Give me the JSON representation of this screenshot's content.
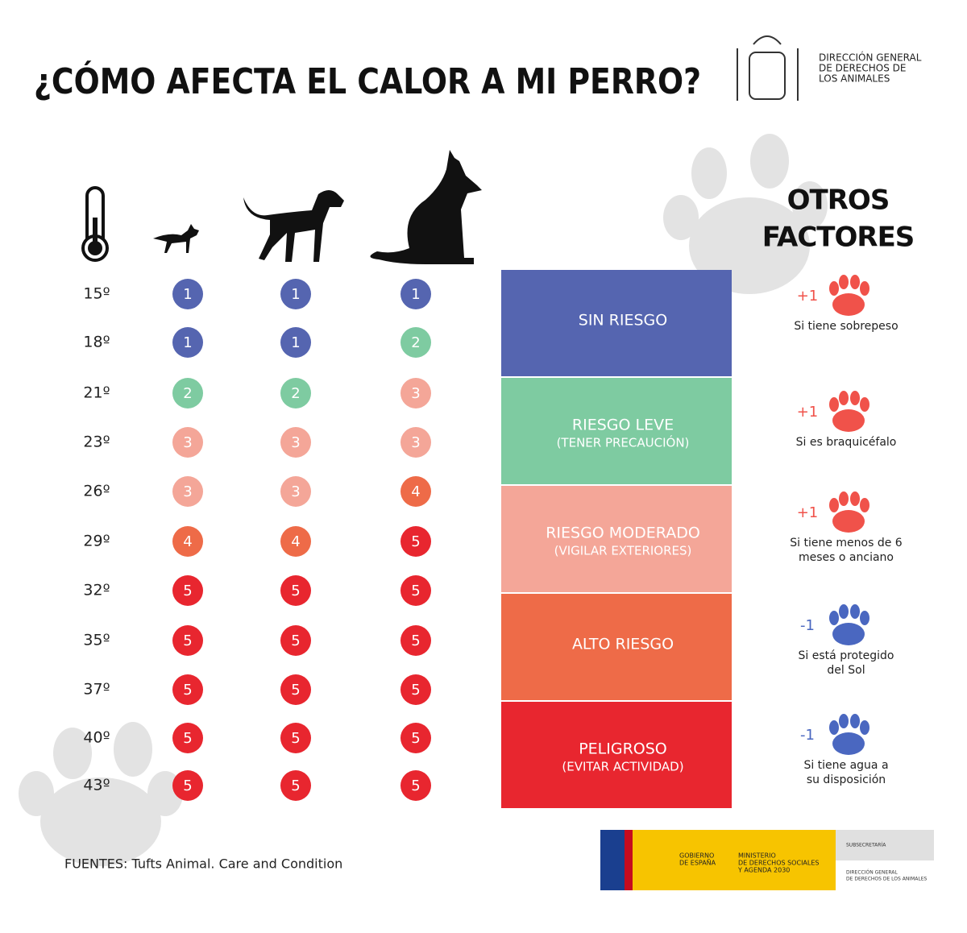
{
  "header": {
    "title": "¿CÓMO AFECTA EL CALOR A MI PERRO?",
    "org_lines": [
      "DIRECCIÓN GENERAL",
      "DE DERECHOS DE",
      "LOS ANIMALES"
    ]
  },
  "table": {
    "rows": [
      {
        "temp": "15º",
        "levels": [
          1,
          1,
          1
        ]
      },
      {
        "temp": "18º",
        "levels": [
          1,
          1,
          2
        ]
      },
      {
        "temp": "21º",
        "levels": [
          2,
          2,
          3
        ]
      },
      {
        "temp": "23º",
        "levels": [
          3,
          3,
          3
        ]
      },
      {
        "temp": "26º",
        "levels": [
          3,
          3,
          4
        ]
      },
      {
        "temp": "29º",
        "levels": [
          4,
          4,
          5
        ]
      },
      {
        "temp": "32º",
        "levels": [
          5,
          5,
          5
        ]
      },
      {
        "temp": "35º",
        "levels": [
          5,
          5,
          5
        ]
      },
      {
        "temp": "37º",
        "levels": [
          5,
          5,
          5
        ]
      },
      {
        "temp": "40º",
        "levels": [
          5,
          5,
          5
        ]
      },
      {
        "temp": "43º",
        "levels": [
          5,
          5,
          5
        ]
      }
    ]
  },
  "risk_levels": [
    {
      "label": "SIN RIESGO",
      "color": "#5565b0"
    },
    {
      "label": "RIESGO LEVE",
      "sub": "(TENER PRECAUCIÓN)",
      "color": "#7ecba1"
    },
    {
      "label": "RIESGO MODERADO",
      "sub": "(VIGILAR EXTERIORES)",
      "color": "#f4a698"
    },
    {
      "label": "ALTO RIESGO",
      "color": "#ee6b48"
    },
    {
      "label": "PELIGROSO",
      "sub": "(EVITAR ACTIVIDAD)",
      "color": "#e8262f"
    }
  ],
  "other_factors": {
    "title_lines": [
      "OTROS",
      "FACTORES"
    ],
    "items": [
      {
        "modifier": "+1",
        "lines": [
          "Si tiene sobrepeso"
        ],
        "color": "#f0524a"
      },
      {
        "modifier": "+1",
        "lines": [
          "Si es braquicéfalo"
        ],
        "color": "#f0524a"
      },
      {
        "modifier": "+1",
        "lines": [
          "Si tiene menos de 6",
          "meses o anciano"
        ],
        "color": "#f0524a"
      },
      {
        "modifier": "-1",
        "lines": [
          "Si está protegido",
          "del Sol"
        ],
        "color": "#4a67c0"
      },
      {
        "modifier": "-1",
        "lines": [
          "Si tiene agua a",
          "su disposición"
        ],
        "color": "#4a67c0"
      }
    ]
  },
  "footer": {
    "sources": "FUENTES: Tufts Animal. Care and Condition",
    "gov": [
      "GOBIERNO",
      "DE ESPAÑA"
    ],
    "ministry": [
      "MINISTERIO",
      "DE DERECHOS SOCIALES",
      "Y AGENDA 2030"
    ],
    "sub": "SUBSECRETARÍA",
    "dg": [
      "DIRECCIÓN GENERAL",
      "DE DERECHOS DE LOS ANIMALES"
    ]
  }
}
